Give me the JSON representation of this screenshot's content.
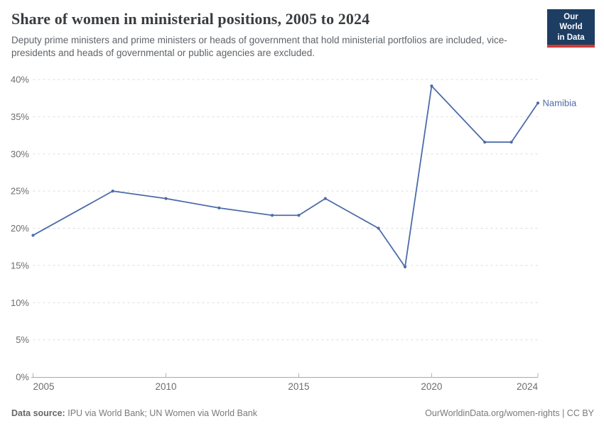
{
  "chart_data": {
    "type": "line",
    "title": "Share of women in ministerial positions, 2005 to 2024",
    "subtitle": "Deputy prime ministers and prime ministers or heads of government that hold ministerial portfolios are included, vice-presidents and heads of governmental or public agencies are excluded.",
    "x": [
      2005,
      2008,
      2010,
      2012,
      2014,
      2015,
      2016,
      2018,
      2019,
      2020,
      2022,
      2023,
      2024
    ],
    "series": [
      {
        "name": "Namibia",
        "color": "#4c6ca8",
        "values": [
          19.05,
          25,
          24,
          22.73,
          21.74,
          21.74,
          24,
          20,
          14.81,
          39.13,
          31.58,
          31.58,
          36.84
        ]
      }
    ],
    "xlabel": "",
    "ylabel": "",
    "xlim": [
      2005,
      2024
    ],
    "ylim": [
      0,
      40
    ],
    "x_ticks": [
      "2005",
      "2010",
      "2015",
      "2020",
      "2024"
    ],
    "y_ticks": [
      "0%",
      "5%",
      "10%",
      "15%",
      "20%",
      "25%",
      "30%",
      "35%",
      "40%"
    ],
    "grid": "horizontal-dashed",
    "legend": "series-end-label",
    "end_label": "Namibia"
  },
  "logo": {
    "line1": "Our World",
    "line2": "in Data",
    "bg_color": "#1d3d63",
    "accent_color": "#d13b32"
  },
  "footer": {
    "source_label": "Data source:",
    "source_text": "IPU via World Bank; UN Women via World Bank",
    "attribution": "OurWorldinData.org/women-rights | CC BY"
  }
}
